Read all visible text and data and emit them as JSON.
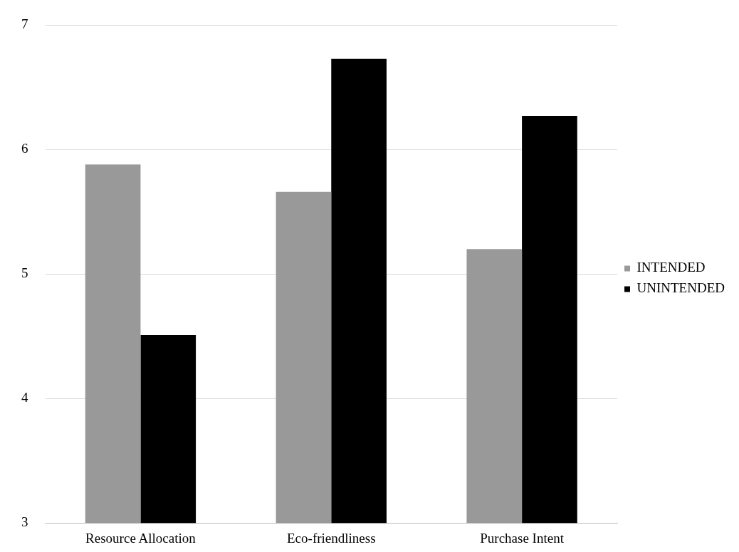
{
  "chart_data": {
    "type": "bar",
    "categories": [
      "Resource Allocation",
      "Eco-friendliness",
      "Purchase Intent"
    ],
    "series": [
      {
        "name": "INTENDED",
        "color": "#999999",
        "values": [
          5.88,
          5.66,
          5.2
        ]
      },
      {
        "name": "UNINTENDED",
        "color": "#000000",
        "values": [
          4.51,
          6.73,
          6.27
        ]
      }
    ],
    "ylim": [
      3,
      7
    ],
    "yticks": [
      3,
      4,
      5,
      6,
      7
    ],
    "grid": "y",
    "legend": "right"
  }
}
